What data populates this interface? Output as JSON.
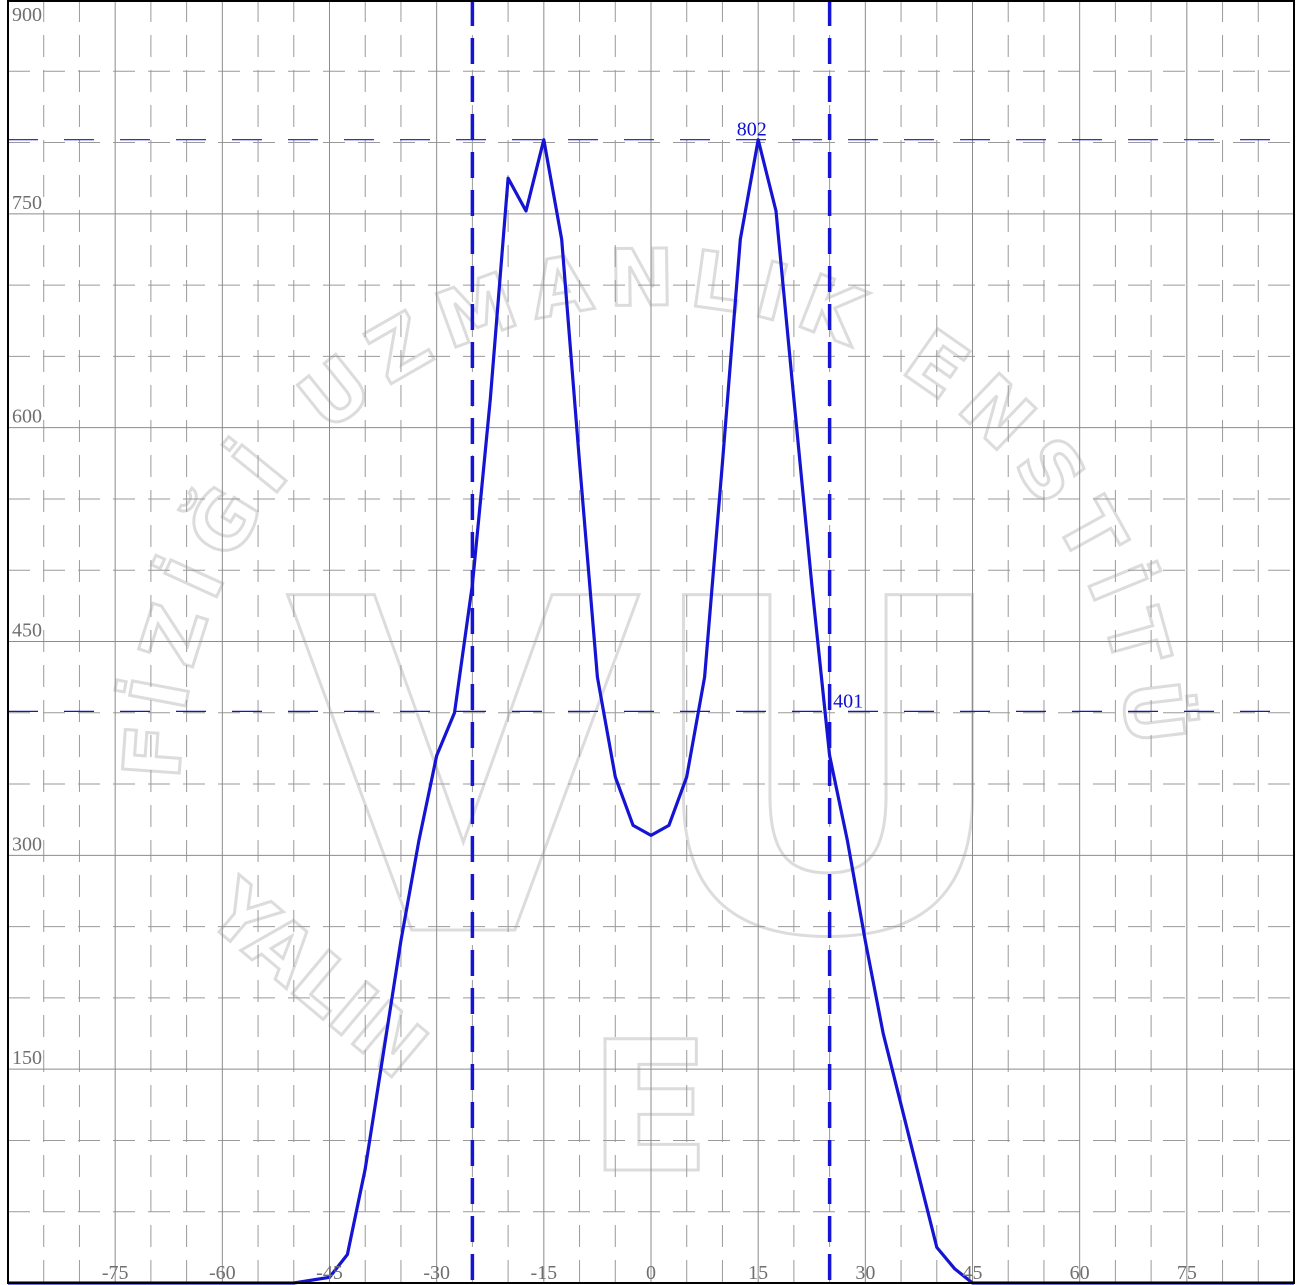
{
  "chart_data": {
    "type": "line",
    "title": "",
    "xlabel": "",
    "ylabel": "",
    "xlim": [
      -90,
      90
    ],
    "ylim": [
      0,
      900
    ],
    "x_ticks": [
      -75,
      -60,
      -45,
      -30,
      -15,
      0,
      15,
      30,
      45,
      60,
      75
    ],
    "y_ticks": [
      150,
      300,
      450,
      600,
      750,
      900
    ],
    "x_tick_labels": [
      "-75",
      "-60",
      "-45",
      "-30",
      "-15",
      "0",
      "15",
      "30",
      "45",
      "60",
      "75"
    ],
    "y_tick_labels": [
      "150",
      "300",
      "450",
      "600",
      "750",
      "900"
    ],
    "grid": true,
    "series": [
      {
        "color": "#1414d2",
        "x": [
          -90,
          -50,
          -45,
          -42.5,
          -40,
          -37.5,
          -35,
          -32.5,
          -30,
          -27.5,
          -25,
          -22.5,
          -20,
          -17.5,
          -15,
          -12.5,
          -10,
          -7.5,
          -5,
          -2.5,
          0,
          2.5,
          5,
          7.5,
          10,
          12.5,
          15,
          17.5,
          20,
          22.5,
          25,
          27.5,
          30,
          32.5,
          35,
          37.5,
          40,
          42.5,
          45,
          50,
          90
        ],
        "y": [
          0,
          0,
          4,
          20,
          80,
          160,
          240,
          310,
          370,
          400,
          490,
          620,
          775,
          752,
          802,
          732,
          575,
          425,
          355,
          321,
          314,
          321,
          355,
          425,
          575,
          732,
          802,
          752,
          620,
          490,
          370,
          310,
          240,
          175,
          125,
          75,
          25,
          10,
          0,
          0,
          0
        ]
      }
    ],
    "reference_lines": [
      {
        "orientation": "horizontal",
        "value": 802,
        "label": "802",
        "color": "#1414d2",
        "style": "dashed"
      },
      {
        "orientation": "horizontal",
        "value": 401,
        "label": "401",
        "color": "#1414d2",
        "style": "dashed"
      },
      {
        "orientation": "vertical",
        "value": -25,
        "color": "#1414d2",
        "style": "dashed"
      },
      {
        "orientation": "vertical",
        "value": 25,
        "color": "#1414d2",
        "style": "dashed"
      }
    ]
  },
  "watermark": {
    "arc_text": "FİZİĞİ UZMANLIK ENSTİTÜSÜ",
    "logo_text": "VU",
    "bottom_text": "E",
    "left_bottom_text": "YALIN"
  }
}
